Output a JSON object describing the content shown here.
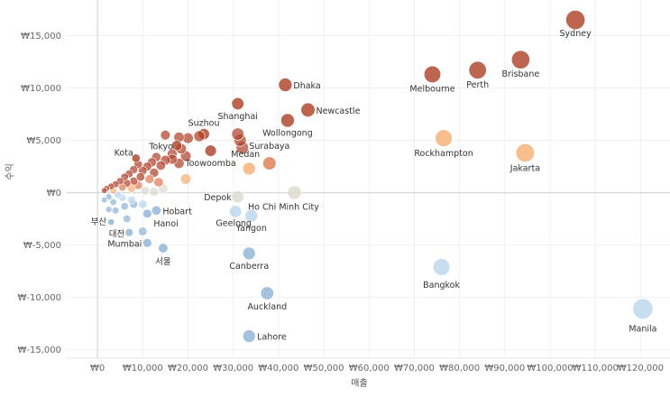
{
  "chart_data": {
    "type": "scatter",
    "xlabel": "매출",
    "ylabel": "수익",
    "xlim": [
      -6800,
      126500
    ],
    "ylim": [
      -15800,
      18400
    ],
    "grid": true,
    "x_ticks": [
      {
        "value": 0,
        "label": "₩0"
      },
      {
        "value": 10000,
        "label": "₩10,000"
      },
      {
        "value": 20000,
        "label": "₩20,000"
      },
      {
        "value": 30000,
        "label": "₩30,000"
      },
      {
        "value": 40000,
        "label": "₩40,000"
      },
      {
        "value": 50000,
        "label": "₩50,000"
      },
      {
        "value": 60000,
        "label": "₩60,000"
      },
      {
        "value": 70000,
        "label": "₩70,000"
      },
      {
        "value": 80000,
        "label": "₩80,000"
      },
      {
        "value": 90000,
        "label": "₩90,000"
      },
      {
        "value": 100000,
        "label": "₩100,000"
      },
      {
        "value": 110000,
        "label": "₩110,000"
      },
      {
        "value": 120000,
        "label": "₩120,000"
      }
    ],
    "y_ticks": [
      {
        "value": 15000,
        "label": "₩15,000"
      },
      {
        "value": 10000,
        "label": "₩10,000"
      },
      {
        "value": 5000,
        "label": "₩5,000"
      },
      {
        "value": 0,
        "label": "₩0"
      },
      {
        "value": -5000,
        "label": "₩-5,000"
      },
      {
        "value": -10000,
        "label": "₩-10,000"
      },
      {
        "value": -15000,
        "label": "₩-15,000"
      }
    ],
    "colors": {
      "strong_positive": "#b0432a",
      "positive": "#e07b52",
      "light_positive": "#f6b073",
      "neutral": "#ddd9cf",
      "light_negative": "#b9d7ec",
      "negative": "#8fb5d8",
      "axis_zero": "#d8d8d8",
      "grid": "#f0f0f0"
    },
    "points": [
      {
        "city": "Sydney",
        "sales": 105600,
        "profit": 16500,
        "size": 105600
      },
      {
        "city": "Brisbane",
        "sales": 93500,
        "profit": 12700,
        "size": 93500
      },
      {
        "city": "Perth",
        "sales": 84000,
        "profit": 11700,
        "size": 84000
      },
      {
        "city": "Melbourne",
        "sales": 74000,
        "profit": 11300,
        "size": 74000
      },
      {
        "city": "Dhaka",
        "sales": 41500,
        "profit": 10300,
        "size": 41500
      },
      {
        "city": "Shanghai",
        "sales": 31000,
        "profit": 8500,
        "size": 31000
      },
      {
        "city": "Newcastle",
        "sales": 46500,
        "profit": 7900,
        "size": 46500
      },
      {
        "city": "Wollongong",
        "sales": 42000,
        "profit": 6900,
        "size": 42000
      },
      {
        "city": "Suzhou",
        "sales": 23500,
        "profit": 5600,
        "size": 23500
      },
      {
        "city": "Tokyo",
        "sales": 17500,
        "profit": 4500,
        "size": 17500
      },
      {
        "city": "Rockhampton",
        "sales": 76500,
        "profit": 5200,
        "size": 76500
      },
      {
        "city": "Jakarta",
        "sales": 94500,
        "profit": 3800,
        "size": 94500
      },
      {
        "city": "Toowoomba",
        "sales": 25000,
        "profit": 4000,
        "size": 25000
      },
      {
        "city": "Kota",
        "sales": 8500,
        "profit": 3300,
        "size": 8500
      },
      {
        "city": "Surabaya",
        "sales": 38000,
        "profit": 2800,
        "size": 38000
      },
      {
        "city": "Medan",
        "sales": 33500,
        "profit": 2300,
        "size": 33500
      },
      {
        "city": "Depok",
        "sales": 31000,
        "profit": -400,
        "size": 31000
      },
      {
        "city": "Ho Chi Minh City",
        "sales": 43500,
        "profit": 0,
        "size": 43500
      },
      {
        "city": "Geelong",
        "sales": 30500,
        "profit": -1800,
        "size": 30500
      },
      {
        "city": "Yangon",
        "sales": 34000,
        "profit": -2200,
        "size": 34000
      },
      {
        "city": "Hobart",
        "sales": 13000,
        "profit": -1700,
        "size": 13000
      },
      {
        "city": "Hanoi",
        "sales": 11000,
        "profit": -2000,
        "size": 11000
      },
      {
        "city": "부산",
        "sales": 3000,
        "profit": -2800,
        "size": 3000
      },
      {
        "city": "대전",
        "sales": 7000,
        "profit": -3800,
        "size": 7000
      },
      {
        "city": "Mumbai",
        "sales": 11000,
        "profit": -4800,
        "size": 11000
      },
      {
        "city": "서울",
        "sales": 14500,
        "profit": -5300,
        "size": 14500
      },
      {
        "city": "Canberra",
        "sales": 33500,
        "profit": -5800,
        "size": 33500
      },
      {
        "city": "Bangkok",
        "sales": 76000,
        "profit": -7100,
        "size": 76000
      },
      {
        "city": "Auckland",
        "sales": 37500,
        "profit": -9600,
        "size": 37500
      },
      {
        "city": "Manila",
        "sales": 120500,
        "profit": -11100,
        "size": 120500
      },
      {
        "city": "Lahore",
        "sales": 33500,
        "profit": -13700,
        "size": 33500
      },
      {
        "city": "",
        "sales": 20000,
        "profit": 5200,
        "size": 20000
      },
      {
        "city": "",
        "sales": 22500,
        "profit": 5400,
        "size": 22500
      },
      {
        "city": "",
        "sales": 18000,
        "profit": 5300,
        "size": 18000
      },
      {
        "city": "",
        "sales": 15000,
        "profit": 5500,
        "size": 15000
      },
      {
        "city": "",
        "sales": 31000,
        "profit": 5600,
        "size": 31000
      },
      {
        "city": "",
        "sales": 31500,
        "profit": 5000,
        "size": 31500
      },
      {
        "city": "",
        "sales": 32000,
        "profit": 4300,
        "size": 32000
      },
      {
        "city": "",
        "sales": 18500,
        "profit": 4200,
        "size": 18500
      },
      {
        "city": "",
        "sales": 16500,
        "profit": 3700,
        "size": 16500
      },
      {
        "city": "",
        "sales": 19500,
        "profit": 3500,
        "size": 19500
      },
      {
        "city": "",
        "sales": 16500,
        "profit": 3200,
        "size": 16500
      },
      {
        "city": "",
        "sales": 18000,
        "profit": 2800,
        "size": 18000
      },
      {
        "city": "",
        "sales": 15000,
        "profit": 3100,
        "size": 15000
      },
      {
        "city": "",
        "sales": 13000,
        "profit": 3400,
        "size": 13000
      },
      {
        "city": "",
        "sales": 12000,
        "profit": 2900,
        "size": 12000
      },
      {
        "city": "",
        "sales": 14000,
        "profit": 2600,
        "size": 14000
      },
      {
        "city": "",
        "sales": 11000,
        "profit": 2500,
        "size": 11000
      },
      {
        "city": "",
        "sales": 9000,
        "profit": 2700,
        "size": 9000
      },
      {
        "city": "",
        "sales": 10000,
        "profit": 2100,
        "size": 10000
      },
      {
        "city": "",
        "sales": 12500,
        "profit": 1900,
        "size": 12500
      },
      {
        "city": "",
        "sales": 8000,
        "profit": 2200,
        "size": 8000
      },
      {
        "city": "",
        "sales": 7000,
        "profit": 1800,
        "size": 7000
      },
      {
        "city": "",
        "sales": 6000,
        "profit": 1500,
        "size": 6000
      },
      {
        "city": "",
        "sales": 9500,
        "profit": 1500,
        "size": 9500
      },
      {
        "city": "",
        "sales": 11500,
        "profit": 1300,
        "size": 11500
      },
      {
        "city": "",
        "sales": 8000,
        "profit": 1100,
        "size": 8000
      },
      {
        "city": "",
        "sales": 5000,
        "profit": 1100,
        "size": 5000
      },
      {
        "city": "",
        "sales": 6500,
        "profit": 900,
        "size": 6500
      },
      {
        "city": "",
        "sales": 4000,
        "profit": 800,
        "size": 4000
      },
      {
        "city": "",
        "sales": 3000,
        "profit": 600,
        "size": 3000
      },
      {
        "city": "",
        "sales": 5500,
        "profit": 500,
        "size": 5500
      },
      {
        "city": "",
        "sales": 2000,
        "profit": 400,
        "size": 2000
      },
      {
        "city": "",
        "sales": 7500,
        "profit": 400,
        "size": 7500
      },
      {
        "city": "",
        "sales": 9000,
        "profit": 700,
        "size": 9000
      },
      {
        "city": "",
        "sales": 1500,
        "profit": 200,
        "size": 1500
      },
      {
        "city": "",
        "sales": 3500,
        "profit": 200,
        "size": 3500
      },
      {
        "city": "",
        "sales": 13500,
        "profit": 1000,
        "size": 13500
      },
      {
        "city": "",
        "sales": 10500,
        "profit": 200,
        "size": 10500
      },
      {
        "city": "",
        "sales": 12500,
        "profit": 100,
        "size": 12500
      },
      {
        "city": "",
        "sales": 14500,
        "profit": 400,
        "size": 14500
      },
      {
        "city": "",
        "sales": 19500,
        "profit": 1300,
        "size": 19500
      },
      {
        "city": "",
        "sales": 4500,
        "profit": -200,
        "size": 4500
      },
      {
        "city": "",
        "sales": 2500,
        "profit": -400,
        "size": 2500
      },
      {
        "city": "",
        "sales": 5500,
        "profit": -500,
        "size": 5500
      },
      {
        "city": "",
        "sales": 1500,
        "profit": -700,
        "size": 1500
      },
      {
        "city": "",
        "sales": 3500,
        "profit": -900,
        "size": 3500
      },
      {
        "city": "",
        "sales": 6000,
        "profit": -1300,
        "size": 6000
      },
      {
        "city": "",
        "sales": 8000,
        "profit": -1100,
        "size": 8000
      },
      {
        "city": "",
        "sales": 7500,
        "profit": -700,
        "size": 7500
      },
      {
        "city": "",
        "sales": 4000,
        "profit": -1700,
        "size": 4000
      },
      {
        "city": "",
        "sales": 2500,
        "profit": -1600,
        "size": 2500
      },
      {
        "city": "",
        "sales": 10000,
        "profit": -1100,
        "size": 10000
      },
      {
        "city": "",
        "sales": 6500,
        "profit": -2500,
        "size": 6500
      },
      {
        "city": "",
        "sales": 10000,
        "profit": -3700,
        "size": 10000
      }
    ]
  }
}
